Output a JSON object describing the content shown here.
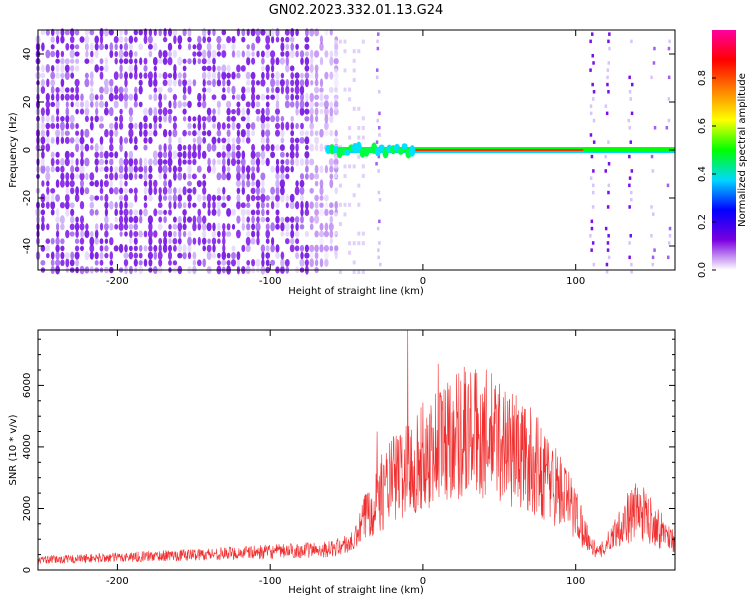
{
  "title": "GN02.2023.332.01.13.G24",
  "chart_data": [
    {
      "type": "heatmap",
      "xlabel": "Height of straight line (km)",
      "ylabel": "Frequency (Hz)",
      "xlim": [
        -252,
        165
      ],
      "ylim": [
        -50,
        50
      ],
      "xticks": [
        -200,
        -100,
        0,
        100
      ],
      "yticks": [
        -40,
        -20,
        0,
        20,
        40
      ],
      "colorbar": {
        "label": "Normalized spectral amplitude",
        "range": [
          0,
          1
        ],
        "ticks": [
          0.0,
          0.2,
          0.4,
          0.6,
          0.8
        ],
        "colormap": [
          "#ffffff",
          "#7a00e0",
          "#0000ff",
          "#00d8ff",
          "#00ff00",
          "#ffff00",
          "#ff8000",
          "#ff0000",
          "#ff00a0"
        ]
      },
      "features": {
        "noise_region_km": [
          -252,
          -55
        ],
        "line_frequency_hz": 0,
        "line_start_km": -62,
        "noise_bands_km": [
          -30,
          110,
          120,
          135,
          150,
          160
        ]
      }
    },
    {
      "type": "line",
      "xlabel": "Height of straight line (km)",
      "ylabel": "SNR (10 * v/v)",
      "xlim": [
        -252,
        165
      ],
      "ylim": [
        0,
        7800
      ],
      "xticks": [
        -200,
        -100,
        0,
        100
      ],
      "yticks": [
        0,
        2000,
        4000,
        6000
      ],
      "color": "#f03030",
      "envelope": {
        "x": [
          -252,
          -200,
          -150,
          -100,
          -60,
          -45,
          -35,
          -20,
          -10,
          0,
          10,
          20,
          30,
          40,
          50,
          60,
          70,
          80,
          90,
          100,
          110,
          115,
          120,
          130,
          140,
          150,
          165
        ],
        "y": [
          350,
          450,
          550,
          650,
          750,
          1000,
          2300,
          3300,
          3700,
          4100,
          4600,
          5000,
          5000,
          4950,
          4750,
          4400,
          4000,
          3500,
          2900,
          2100,
          900,
          600,
          900,
          1700,
          2200,
          1800,
          1000
        ]
      },
      "spikes": [
        {
          "x": -10,
          "y": 7800
        },
        {
          "x": 10,
          "y": 6700
        },
        {
          "x": 27,
          "y": 6600
        },
        {
          "x": -30,
          "y": 4500
        }
      ]
    }
  ]
}
